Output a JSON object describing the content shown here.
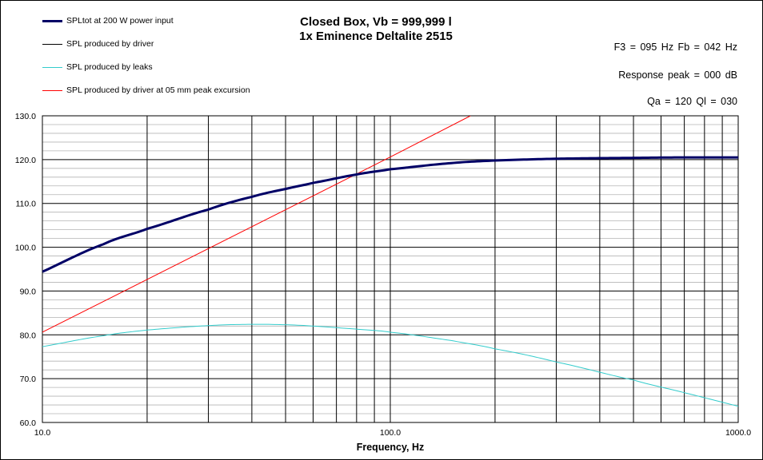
{
  "chart_data": {
    "type": "line",
    "title": "Closed Box, Vb = 999,999 l",
    "subtitle": "1x Eminence Deltalite 2515",
    "xlabel": "Frequency, Hz",
    "ylabel": "",
    "xscale": "log",
    "xlim": [
      10,
      1000
    ],
    "ylim": [
      60,
      130
    ],
    "x_tick_labels": [
      "10.0",
      "100.0",
      "1000.0"
    ],
    "y_tick_labels": [
      "60.0",
      "70.0",
      "80.0",
      "90.0",
      "100.0",
      "110.0",
      "120.0",
      "130.0"
    ],
    "grid": true,
    "legend_position": "top-left",
    "series": [
      {
        "name": "SPLtot at 200 W power input",
        "color": "#000066",
        "x": [
          10,
          15,
          20,
          30,
          40,
          50,
          60,
          80,
          100,
          150,
          200,
          300,
          500,
          700,
          1000
        ],
        "y": [
          94.4,
          100.7,
          104.2,
          108.6,
          111.5,
          113.3,
          114.7,
          116.6,
          117.8,
          119.2,
          119.8,
          120.2,
          120.4,
          120.5,
          120.5
        ]
      },
      {
        "name": "SPL produced by driver",
        "color": "#000000",
        "x": [
          10,
          15,
          20,
          30,
          40,
          50,
          60,
          80,
          100,
          150,
          200,
          300,
          500,
          700,
          1000
        ],
        "y": [
          94.4,
          100.7,
          104.2,
          108.6,
          111.5,
          113.3,
          114.7,
          116.6,
          117.8,
          119.2,
          119.8,
          120.2,
          120.4,
          120.5,
          120.5
        ]
      },
      {
        "name": "SPL produced by leaks",
        "color": "#33CCCC",
        "x": [
          10,
          15,
          20,
          30,
          40,
          50,
          60,
          80,
          100,
          150,
          200,
          300,
          500,
          700,
          1000
        ],
        "y": [
          77.3,
          79.8,
          81.1,
          82.1,
          82.4,
          82.3,
          82.0,
          81.3,
          80.6,
          78.7,
          76.8,
          73.8,
          69.7,
          66.8,
          63.7
        ]
      },
      {
        "name": "SPL produced by driver at 05 mm peak excursion",
        "color": "#FF0000",
        "x": [
          10,
          100,
          170
        ],
        "y": [
          80.6,
          120.6,
          130
        ]
      }
    ]
  },
  "params": {
    "f3": "F3 = 095 Hz  Fb = 042 Hz",
    "peak": "Response  peak = 000 dB",
    "q": "Qa = 120  Ql = 030"
  }
}
